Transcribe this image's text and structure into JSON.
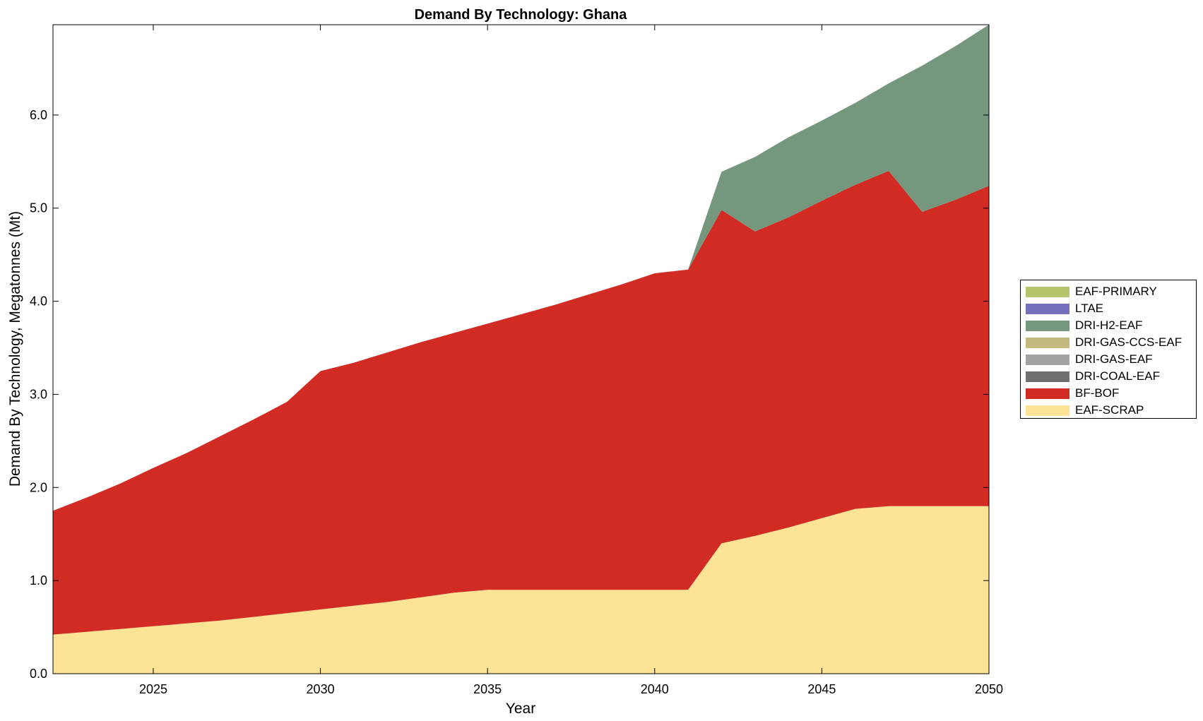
{
  "chart_data": {
    "type": "area",
    "stacked": true,
    "title": "Demand By Technology: Ghana",
    "xlabel": "Year",
    "ylabel": "Demand By Technology, Megatonnes (Mt)",
    "xlim": [
      2022,
      2050
    ],
    "ylim": [
      0,
      6.97
    ],
    "xticks": [
      2025,
      2030,
      2035,
      2040,
      2045,
      2050
    ],
    "yticks": [
      "0.0",
      "1.0",
      "2.0",
      "3.0",
      "4.0",
      "5.0",
      "6.0"
    ],
    "legend_position": "right",
    "x": [
      2022,
      2023,
      2024,
      2025,
      2026,
      2027,
      2028,
      2029,
      2030,
      2031,
      2032,
      2033,
      2034,
      2035,
      2036,
      2037,
      2038,
      2039,
      2040,
      2041,
      2042,
      2043,
      2044,
      2045,
      2046,
      2047,
      2048,
      2049,
      2050
    ],
    "series": [
      {
        "name": "EAF-SCRAP",
        "color": "#fde396",
        "values": [
          0.42,
          0.45,
          0.48,
          0.51,
          0.54,
          0.57,
          0.61,
          0.65,
          0.69,
          0.73,
          0.77,
          0.82,
          0.87,
          0.9,
          0.9,
          0.9,
          0.9,
          0.9,
          0.9,
          0.9,
          1.4,
          1.48,
          1.57,
          1.67,
          1.77,
          1.8,
          1.8,
          1.8,
          1.8
        ]
      },
      {
        "name": "BF-BOF",
        "color": "#d12b24",
        "values": [
          1.33,
          1.44,
          1.56,
          1.7,
          1.83,
          1.98,
          2.12,
          2.27,
          2.56,
          2.61,
          2.68,
          2.74,
          2.79,
          2.86,
          2.96,
          3.06,
          3.17,
          3.28,
          3.4,
          3.44,
          3.58,
          3.27,
          3.33,
          3.41,
          3.48,
          3.6,
          3.16,
          3.29,
          3.44
        ]
      },
      {
        "name": "DRI-COAL-EAF",
        "color": "#6f6f6f",
        "values": [
          0,
          0,
          0,
          0,
          0,
          0,
          0,
          0,
          0,
          0,
          0,
          0,
          0,
          0,
          0,
          0,
          0,
          0,
          0,
          0,
          0,
          0,
          0,
          0,
          0,
          0,
          0,
          0,
          0
        ]
      },
      {
        "name": "DRI-GAS-EAF",
        "color": "#a2a2a2",
        "values": [
          0,
          0,
          0,
          0,
          0,
          0,
          0,
          0,
          0,
          0,
          0,
          0,
          0,
          0,
          0,
          0,
          0,
          0,
          0,
          0,
          0,
          0,
          0,
          0,
          0,
          0,
          0,
          0,
          0
        ]
      },
      {
        "name": "DRI-GAS-CCS-EAF",
        "color": "#c4b97e",
        "values": [
          0,
          0,
          0,
          0,
          0,
          0,
          0,
          0,
          0,
          0,
          0,
          0,
          0,
          0,
          0,
          0,
          0,
          0,
          0,
          0,
          0,
          0,
          0,
          0,
          0,
          0,
          0,
          0,
          0
        ]
      },
      {
        "name": "DRI-H2-EAF",
        "color": "#74977d",
        "values": [
          0,
          0,
          0,
          0,
          0,
          0,
          0,
          0,
          0,
          0,
          0,
          0,
          0,
          0,
          0,
          0,
          0,
          0,
          0,
          0,
          0.41,
          0.8,
          0.86,
          0.86,
          0.88,
          0.94,
          1.57,
          1.65,
          1.73
        ]
      },
      {
        "name": "LTAE",
        "color": "#7570bc",
        "values": [
          0,
          0,
          0,
          0,
          0,
          0,
          0,
          0,
          0,
          0,
          0,
          0,
          0,
          0,
          0,
          0,
          0,
          0,
          0,
          0,
          0,
          0,
          0,
          0,
          0,
          0,
          0,
          0,
          0
        ]
      },
      {
        "name": "EAF-PRIMARY",
        "color": "#b8c46c",
        "values": [
          0,
          0,
          0,
          0,
          0,
          0,
          0,
          0,
          0,
          0,
          0,
          0,
          0,
          0,
          0,
          0,
          0,
          0,
          0,
          0,
          0,
          0,
          0,
          0,
          0,
          0,
          0,
          0,
          0
        ]
      }
    ],
    "legend_order": [
      "EAF-PRIMARY",
      "LTAE",
      "DRI-H2-EAF",
      "DRI-GAS-CCS-EAF",
      "DRI-GAS-EAF",
      "DRI-COAL-EAF",
      "BF-BOF",
      "EAF-SCRAP"
    ]
  }
}
